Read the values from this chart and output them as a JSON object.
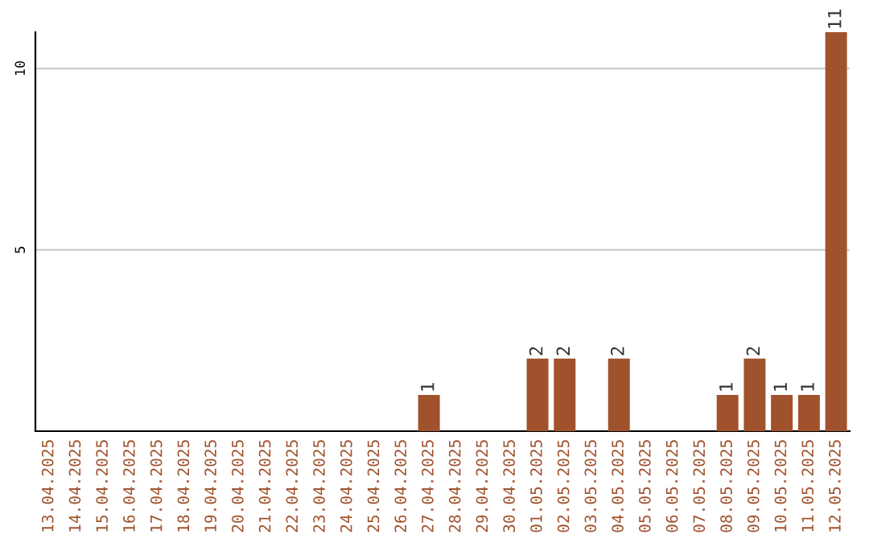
{
  "chart_data": {
    "type": "bar",
    "categories": [
      "13.04.2025",
      "14.04.2025",
      "15.04.2025",
      "16.04.2025",
      "17.04.2025",
      "18.04.2025",
      "19.04.2025",
      "20.04.2025",
      "21.04.2025",
      "22.04.2025",
      "23.04.2025",
      "24.04.2025",
      "25.04.2025",
      "26.04.2025",
      "27.04.2025",
      "28.04.2025",
      "29.04.2025",
      "30.04.2025",
      "01.05.2025",
      "02.05.2025",
      "03.05.2025",
      "04.05.2025",
      "05.05.2025",
      "06.05.2025",
      "07.05.2025",
      "08.05.2025",
      "09.05.2025",
      "10.05.2025",
      "11.05.2025",
      "12.05.2025"
    ],
    "values": [
      0,
      0,
      0,
      0,
      0,
      0,
      0,
      0,
      0,
      0,
      0,
      0,
      0,
      0,
      1,
      0,
      0,
      0,
      2,
      2,
      0,
      2,
      0,
      0,
      0,
      1,
      2,
      1,
      1,
      11
    ],
    "value_labels": [
      null,
      null,
      null,
      null,
      null,
      null,
      null,
      null,
      null,
      null,
      null,
      null,
      null,
      null,
      "1",
      null,
      null,
      null,
      "2",
      "2",
      null,
      "2",
      null,
      null,
      null,
      "1",
      "2",
      "1",
      "1",
      "11"
    ],
    "color": "#a0522d",
    "ylim": [
      0,
      11
    ],
    "yticks": [
      5,
      10
    ],
    "grid": "y"
  }
}
